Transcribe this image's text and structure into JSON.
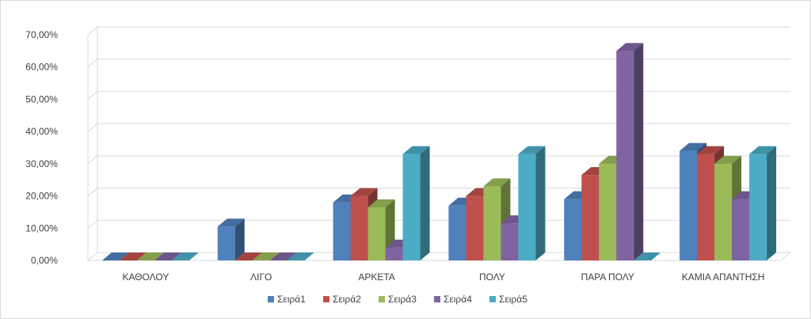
{
  "chart_data": {
    "type": "bar",
    "categories": [
      "ΚΑΘΟΛΟΥ",
      "ΛΙΓΟ",
      "ΑΡΚΕΤΑ",
      "ΠΟΛΥ",
      "ΠΑΡΑ ΠΟΛΥ",
      "ΚΑΜΙΑ ΑΠΑΝΤΗΣΗ"
    ],
    "series": [
      {
        "name": "Σειρά1",
        "color": "#4f81bd",
        "values": [
          0,
          10.5,
          18,
          17,
          19,
          34
        ]
      },
      {
        "name": "Σειρά2",
        "color": "#c0504d",
        "values": [
          0,
          0,
          20,
          20,
          26.5,
          33
        ]
      },
      {
        "name": "Σειρά3",
        "color": "#9bbb59",
        "values": [
          0,
          0,
          16.5,
          23,
          30,
          30
        ]
      },
      {
        "name": "Σειρά4",
        "color": "#8064a2",
        "values": [
          0,
          0,
          4,
          11.5,
          65,
          19
        ]
      },
      {
        "name": "Σειρά5",
        "color": "#4bacc6",
        "values": [
          0,
          0,
          33,
          33,
          0,
          33
        ]
      }
    ],
    "ylim": [
      0,
      70
    ],
    "yticks": [
      "0,00%",
      "10,00%",
      "20,00%",
      "30,00%",
      "40,00%",
      "50,00%",
      "60,00%",
      "70,00%"
    ],
    "grid": true,
    "legend": "bottom",
    "title": "",
    "xlabel": "",
    "ylabel": ""
  }
}
